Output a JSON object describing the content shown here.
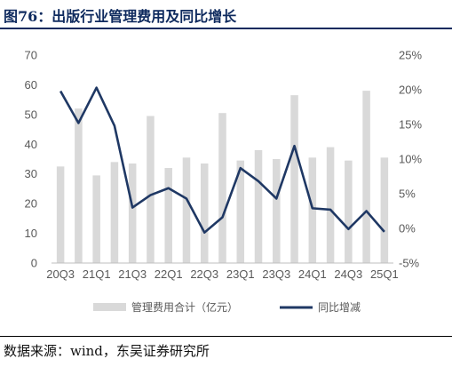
{
  "figure": {
    "title": "图76：出版行业管理费用及同比增长",
    "source": "数据来源：wind，东吴证券研究所"
  },
  "chart_data": {
    "type": "bar+line",
    "categories": [
      "20Q3",
      "20Q4",
      "21Q1",
      "21Q2",
      "21Q3",
      "21Q4",
      "22Q1",
      "22Q2",
      "22Q3",
      "22Q4",
      "23Q1",
      "23Q2",
      "23Q3",
      "23Q4",
      "24Q1",
      "24Q2",
      "24Q3",
      "24Q4",
      "25Q1"
    ],
    "x_tick_labels": [
      "20Q3",
      "21Q1",
      "21Q3",
      "22Q1",
      "22Q3",
      "23Q1",
      "23Q3",
      "24Q1",
      "24Q3",
      "25Q1"
    ],
    "series": [
      {
        "name": "管理费用合计（亿元）",
        "type": "bar",
        "axis": "left",
        "color": "#d9d9d9",
        "values": [
          32.5,
          52.0,
          29.5,
          34.0,
          33.5,
          49.5,
          32.0,
          35.5,
          33.5,
          50.5,
          34.5,
          38.0,
          35.0,
          56.5,
          35.5,
          39.0,
          34.5,
          58.0,
          35.5
        ]
      },
      {
        "name": "同比增减",
        "type": "line",
        "axis": "right",
        "color": "#1f3864",
        "values": [
          19.8,
          15.2,
          20.3,
          14.8,
          3.0,
          4.8,
          5.8,
          4.3,
          -0.6,
          1.6,
          8.7,
          6.8,
          4.3,
          11.9,
          2.9,
          2.7,
          -0.1,
          2.5,
          -0.5
        ]
      }
    ],
    "y_left": {
      "min": 0,
      "max": 70,
      "ticks": [
        0,
        10,
        20,
        30,
        40,
        50,
        60,
        70
      ]
    },
    "y_right": {
      "min": -5,
      "max": 25,
      "ticks": [
        "-5%",
        "0%",
        "5%",
        "10%",
        "15%",
        "20%",
        "25%"
      ]
    },
    "legend_position": "bottom",
    "grid": false
  }
}
